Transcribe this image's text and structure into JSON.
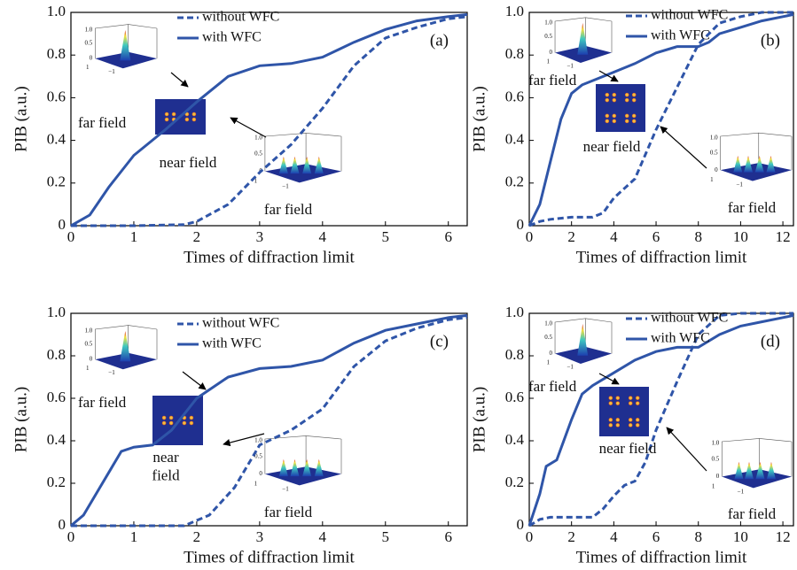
{
  "chart_data": [
    {
      "type": "line",
      "panel_label": "(a)",
      "xlabel": "Times of diffraction limit",
      "ylabel": "PIB (a.u.)",
      "xlim": [
        0,
        6.3
      ],
      "xticks": [
        0,
        1,
        2,
        3,
        4,
        5,
        6
      ],
      "ylim": [
        0,
        1
      ],
      "yticks": [
        0,
        0.2,
        0.4,
        0.6,
        0.8,
        {
          "value": 1,
          "label": "1.0"
        }
      ],
      "series": [
        {
          "name": "without WFC",
          "color": "#2f55a8",
          "style": "dashed",
          "x": [
            0,
            1,
            1.8,
            2,
            2.5,
            3,
            3.5,
            4,
            4.5,
            5,
            5.5,
            6,
            6.3
          ],
          "values": [
            0,
            0,
            0.005,
            0.02,
            0.1,
            0.25,
            0.38,
            0.55,
            0.75,
            0.88,
            0.93,
            0.97,
            0.98
          ]
        },
        {
          "name": "with WFC",
          "color": "#2f55a8",
          "style": "solid",
          "x": [
            0,
            0.3,
            0.6,
            1,
            1.5,
            2,
            2.5,
            3,
            3.5,
            4,
            4.5,
            5,
            5.5,
            6,
            6.3
          ],
          "values": [
            0,
            0.05,
            0.18,
            0.33,
            0.45,
            0.58,
            0.7,
            0.75,
            0.76,
            0.79,
            0.86,
            0.92,
            0.96,
            0.98,
            0.99
          ]
        }
      ],
      "annotations": [
        "far field",
        "near field",
        "far field"
      ],
      "inset_tick_labels": [
        "1.0",
        "0.5",
        "0",
        "−1",
        "1"
      ]
    },
    {
      "type": "line",
      "panel_label": "(b)",
      "xlabel": "Times of diffraction limit",
      "ylabel": "PIB (a.u.)",
      "xlim": [
        0,
        12.5
      ],
      "xticks": [
        0,
        2,
        4,
        6,
        8,
        10,
        12
      ],
      "ylim": [
        0,
        1
      ],
      "yticks": [
        0,
        0.2,
        0.4,
        0.6,
        0.8,
        {
          "value": 1,
          "label": "1.0"
        }
      ],
      "series": [
        {
          "name": "without WFC",
          "color": "#2f55a8",
          "style": "dashed",
          "x": [
            0,
            0.5,
            1,
            2,
            3,
            3.5,
            4,
            5,
            6,
            7,
            8,
            9,
            10,
            11,
            12.5
          ],
          "values": [
            0,
            0.02,
            0.03,
            0.04,
            0.04,
            0.06,
            0.13,
            0.22,
            0.45,
            0.65,
            0.85,
            0.95,
            0.98,
            1,
            1
          ]
        },
        {
          "name": "with WFC",
          "color": "#2f55a8",
          "style": "solid",
          "x": [
            0,
            0.5,
            1,
            1.5,
            2,
            2.5,
            3,
            4,
            5,
            6,
            7,
            8,
            8.5,
            9,
            10,
            11,
            12,
            12.5
          ],
          "values": [
            0,
            0.1,
            0.3,
            0.5,
            0.62,
            0.66,
            0.68,
            0.72,
            0.76,
            0.81,
            0.84,
            0.84,
            0.86,
            0.9,
            0.93,
            0.96,
            0.98,
            0.99
          ]
        }
      ],
      "annotations": [
        "far field",
        "near field",
        "far field"
      ],
      "inset_tick_labels": [
        "1.0",
        "0.5",
        "0",
        "−1",
        "1"
      ]
    },
    {
      "type": "line",
      "panel_label": "(c)",
      "xlabel": "Times of diffraction limit",
      "ylabel": "PIB (a.u.)",
      "xlim": [
        0,
        6.3
      ],
      "xticks": [
        0,
        1,
        2,
        3,
        4,
        5,
        6
      ],
      "ylim": [
        0,
        1
      ],
      "yticks": [
        0,
        0.2,
        0.4,
        0.6,
        0.8,
        {
          "value": 1,
          "label": "1.0"
        }
      ],
      "series": [
        {
          "name": "without WFC",
          "color": "#2f55a8",
          "style": "dashed",
          "x": [
            0,
            1,
            1.8,
            2.2,
            2.6,
            3,
            3.5,
            4,
            4.5,
            5,
            5.5,
            6,
            6.3
          ],
          "values": [
            0,
            0,
            0,
            0.05,
            0.18,
            0.38,
            0.45,
            0.55,
            0.75,
            0.87,
            0.93,
            0.97,
            0.98
          ]
        },
        {
          "name": "with WFC",
          "color": "#2f55a8",
          "style": "solid",
          "x": [
            0,
            0.2,
            0.5,
            0.8,
            1,
            1.3,
            1.6,
            2,
            2.5,
            3,
            3.5,
            4,
            4.5,
            5,
            5.5,
            6,
            6.3
          ],
          "values": [
            0,
            0.05,
            0.2,
            0.35,
            0.37,
            0.38,
            0.45,
            0.6,
            0.7,
            0.74,
            0.75,
            0.78,
            0.86,
            0.92,
            0.95,
            0.98,
            0.99
          ]
        }
      ],
      "annotations": [
        "far field",
        "near field",
        "far field"
      ],
      "inset_tick_labels": [
        "1.0",
        "0.5",
        "0",
        "−1",
        "1"
      ]
    },
    {
      "type": "line",
      "panel_label": "(d)",
      "xlabel": "Times of diffraction limit",
      "ylabel": "PIB (a.u.)",
      "xlim": [
        0,
        12.5
      ],
      "xticks": [
        0,
        2,
        4,
        6,
        8,
        10,
        12
      ],
      "ylim": [
        0,
        1
      ],
      "yticks": [
        0,
        0.2,
        0.4,
        0.6,
        0.8,
        {
          "value": 1,
          "label": "1.0"
        }
      ],
      "series": [
        {
          "name": "without WFC",
          "color": "#2f55a8",
          "style": "dashed",
          "x": [
            0,
            0.5,
            1,
            3,
            3.5,
            4,
            4.5,
            5,
            5.5,
            6,
            7,
            8,
            9,
            10,
            12.5
          ],
          "values": [
            0,
            0.03,
            0.04,
            0.04,
            0.08,
            0.14,
            0.19,
            0.21,
            0.3,
            0.45,
            0.68,
            0.9,
            0.99,
            1,
            1
          ]
        },
        {
          "name": "with WFC",
          "color": "#2f55a8",
          "style": "solid",
          "x": [
            0,
            0.5,
            0.8,
            1.3,
            2,
            2.5,
            3,
            4,
            5,
            6,
            7,
            8,
            9,
            10,
            11,
            12,
            12.5
          ],
          "values": [
            0,
            0.15,
            0.28,
            0.31,
            0.5,
            0.62,
            0.66,
            0.72,
            0.78,
            0.82,
            0.84,
            0.84,
            0.9,
            0.94,
            0.96,
            0.98,
            0.99
          ]
        }
      ],
      "annotations": [
        "far field",
        "near field",
        "far field"
      ],
      "inset_tick_labels": [
        "1.0",
        "0.5",
        "0",
        "−1",
        "1"
      ]
    }
  ]
}
